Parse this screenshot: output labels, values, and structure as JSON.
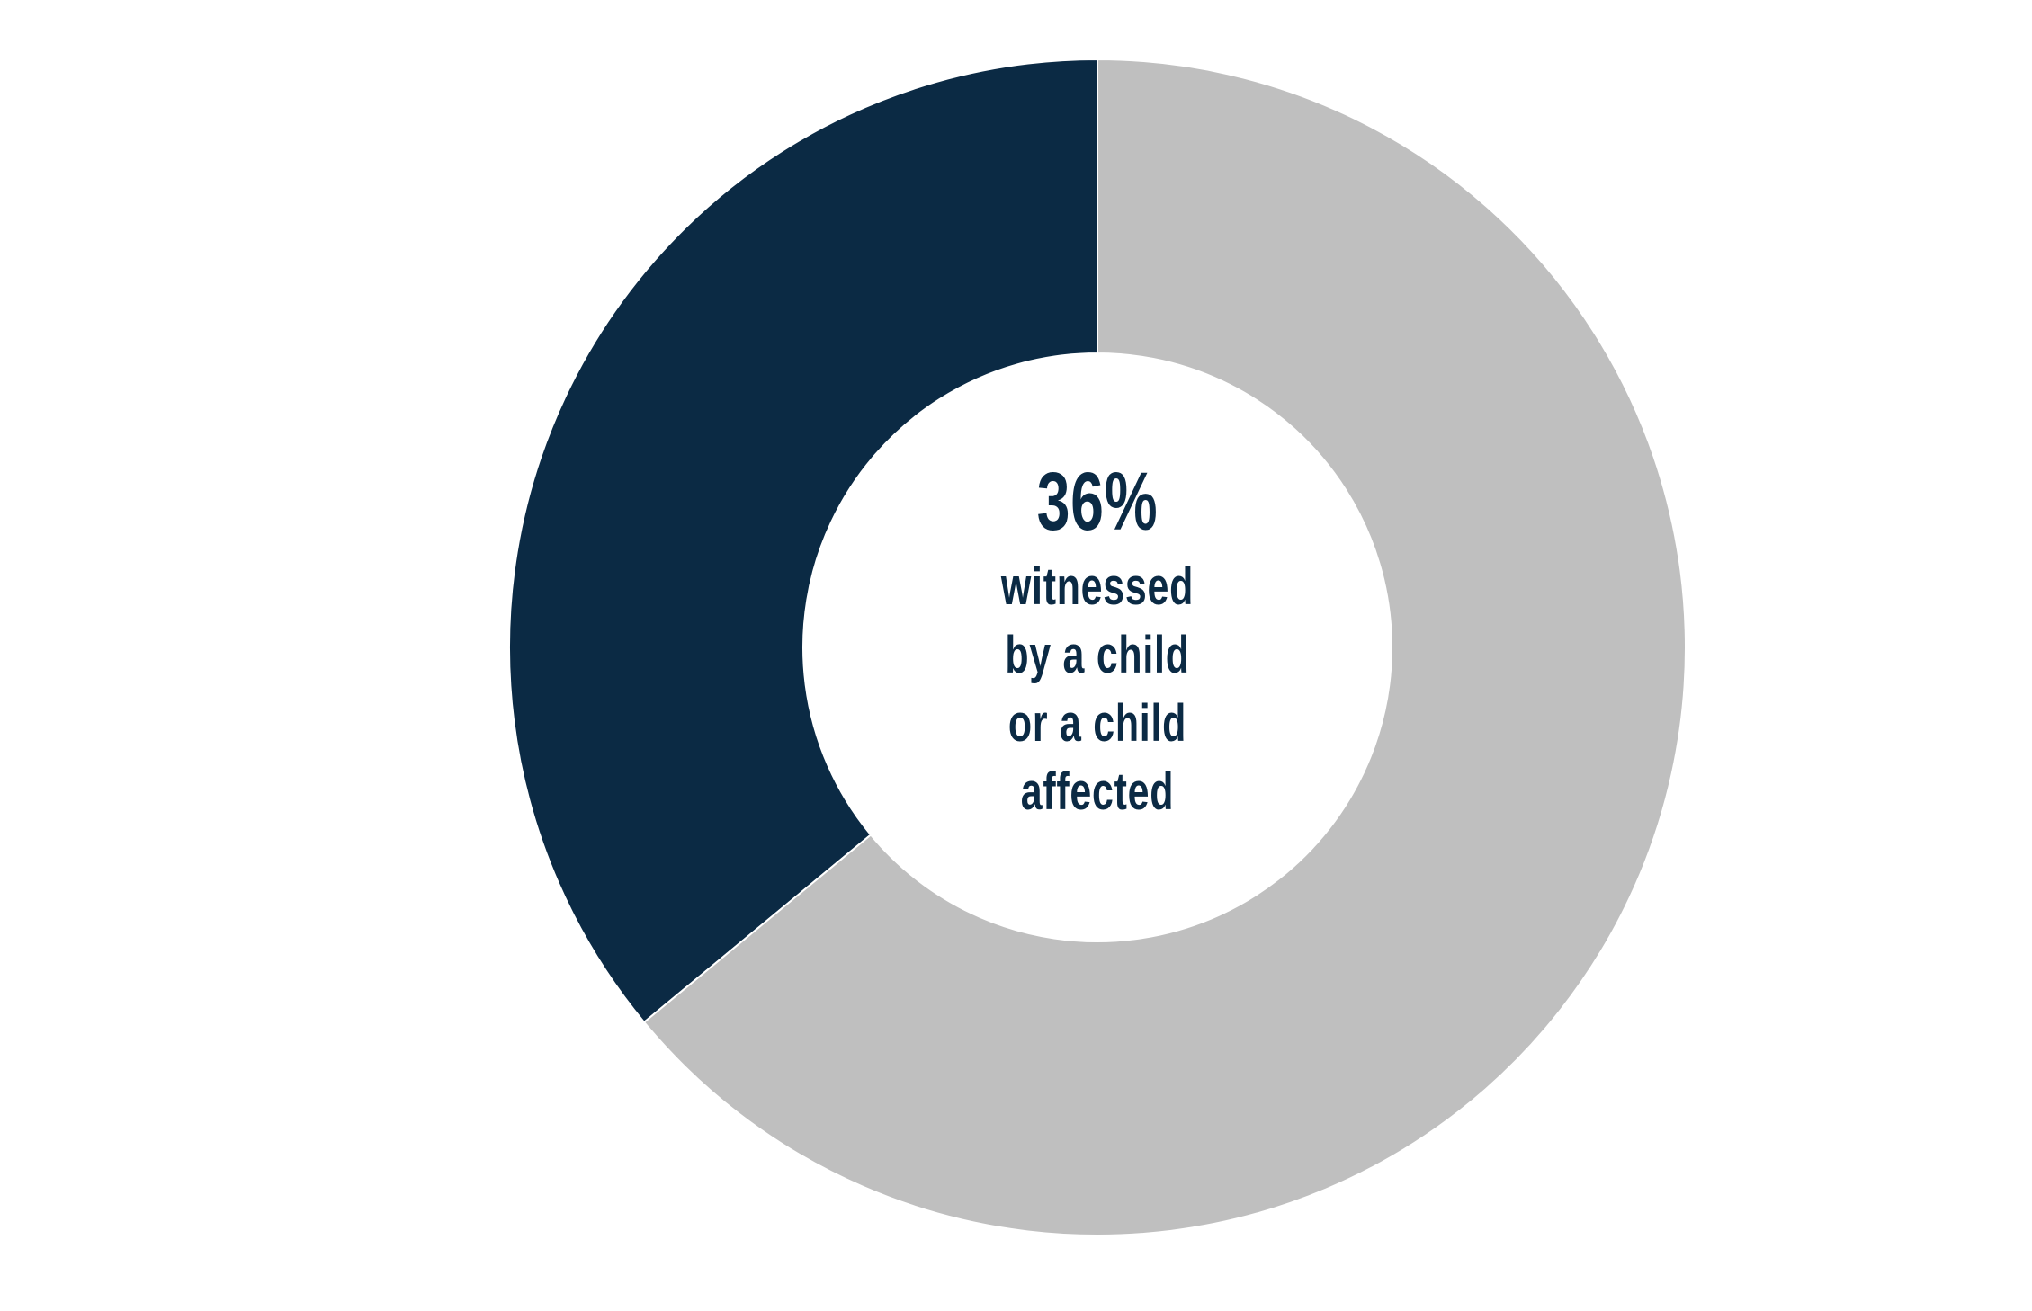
{
  "chart_data": {
    "type": "pie",
    "variant": "donut",
    "center_value": "36%",
    "center_caption": "witnessed by a child or a child affected",
    "slices": [
      {
        "value": 36,
        "color": "#0b2a44"
      },
      {
        "value": 64,
        "color": "#bfbfbf"
      }
    ],
    "start_angle": "top",
    "direction": "counterclockwise",
    "legend": "none"
  }
}
